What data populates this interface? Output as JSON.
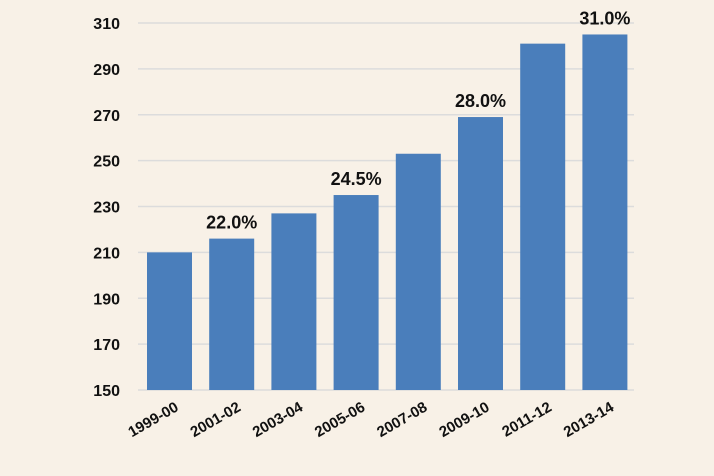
{
  "chart_data": {
    "type": "bar",
    "title": "",
    "xlabel": "",
    "ylabel": "",
    "categories": [
      "1999-00",
      "2001-02",
      "2003-04",
      "2005-06",
      "2007-08",
      "2009-10",
      "2011-12",
      "2013-14"
    ],
    "values": [
      210,
      216,
      227,
      235,
      253,
      269,
      301,
      305
    ],
    "data_labels": [
      "",
      "22.0%",
      "",
      "24.5%",
      "",
      "28.0%",
      "",
      "31.0%"
    ],
    "ylim": [
      150,
      310
    ],
    "yticks": [
      150,
      170,
      190,
      210,
      230,
      250,
      270,
      290,
      310
    ],
    "grid": true,
    "legend": "none",
    "colors": {
      "bar": "#4a7ebb",
      "background": "#f8f1e7",
      "grid": "#dcdcdc",
      "text": "#111111"
    }
  }
}
